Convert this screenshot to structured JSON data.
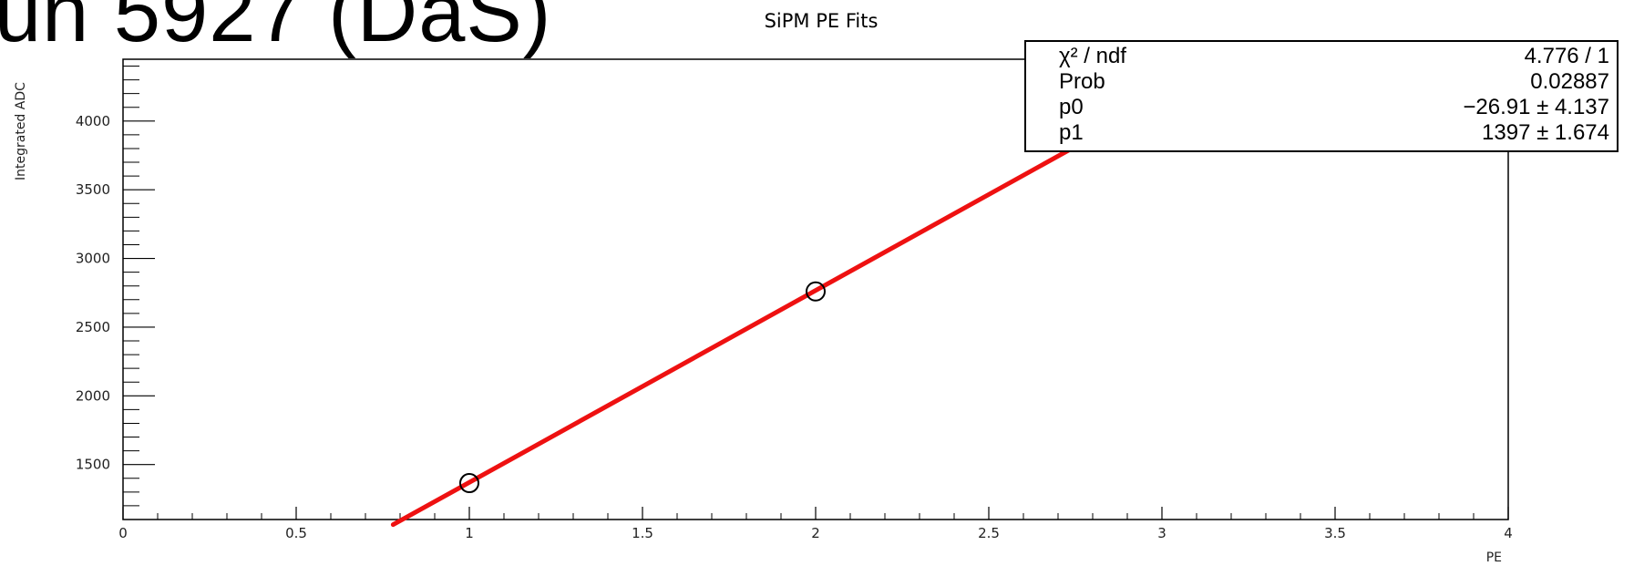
{
  "slide": {
    "heading": "un 5927 (DaS)"
  },
  "stats": [
    {
      "name": "χ² / ndf",
      "value": "4.776 / 1"
    },
    {
      "name": "Prob",
      "value": "0.02887"
    },
    {
      "name": "p0",
      "value": "−26.91 ± 4.137"
    },
    {
      "name": "p1",
      "value": "1397 ± 1.674"
    }
  ],
  "colors": {
    "fit": "#ee1111",
    "marker": "#000000",
    "axis": "#000000"
  },
  "chart_data": {
    "type": "scatter",
    "title": "SiPM PE Fits",
    "xlabel": "PE",
    "ylabel": "Integrated ADC",
    "xlim": [
      0,
      4
    ],
    "ylim": [
      1100,
      4450
    ],
    "xticks": [
      0,
      0.5,
      1,
      1.5,
      2,
      2.5,
      3,
      3.5,
      4
    ],
    "xtick_labels": [
      "0",
      "0.5",
      "1",
      "1.5",
      "2",
      "2.5",
      "3",
      "3.5",
      "4"
    ],
    "yticks": [
      1500,
      2000,
      2500,
      3000,
      3500,
      4000
    ],
    "ytick_labels": [
      "1500",
      "2000",
      "2500",
      "3000",
      "3500",
      "4000"
    ],
    "points": [
      {
        "x": 1,
        "y": 1365
      },
      {
        "x": 2,
        "y": 2760
      }
    ],
    "fit": {
      "p0": -26.91,
      "p1": 1397,
      "x_range": [
        0.78,
        3.22
      ]
    },
    "legend_placement": "top-right",
    "grid": false
  }
}
